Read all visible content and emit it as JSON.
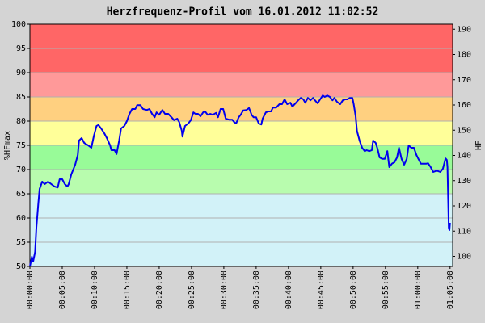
{
  "chart_data": {
    "type": "line",
    "title": "Herzfrequenz-Profil vom 16.01.2012 11:02:52",
    "y_label": "%HFmax",
    "y2_label": "HF",
    "xlim": [
      0,
      65.4
    ],
    "ylim": [
      50,
      100
    ],
    "y2lim": [
      96,
      192
    ],
    "xticks": [
      {
        "value": 0,
        "label": "00:00:00"
      },
      {
        "value": 5,
        "label": "00:05:00"
      },
      {
        "value": 10,
        "label": "00:10:00"
      },
      {
        "value": 15,
        "label": "00:15:00"
      },
      {
        "value": 20,
        "label": "00:20:00"
      },
      {
        "value": 25,
        "label": "00:25:00"
      },
      {
        "value": 30,
        "label": "00:30:00"
      },
      {
        "value": 35,
        "label": "00:35:00"
      },
      {
        "value": 40,
        "label": "00:40:00"
      },
      {
        "value": 45,
        "label": "00:45:00"
      },
      {
        "value": 50,
        "label": "00:50:00"
      },
      {
        "value": 55,
        "label": "00:55:00"
      },
      {
        "value": 60,
        "label": "01:00:00"
      },
      {
        "value": 65,
        "label": "01:05:00"
      }
    ],
    "yticks": [
      50,
      55,
      60,
      65,
      70,
      75,
      80,
      85,
      90,
      95,
      100
    ],
    "y2ticks": [
      100,
      110,
      120,
      130,
      140,
      150,
      160,
      170,
      180,
      190
    ],
    "grid": true,
    "zones": [
      {
        "from": 50,
        "to": 65,
        "color": "#d2f2f8"
      },
      {
        "from": 65,
        "to": 70,
        "color": "#b8fcae"
      },
      {
        "from": 70,
        "to": 75,
        "color": "#98fb98"
      },
      {
        "from": 75,
        "to": 80,
        "color": "#ffff99"
      },
      {
        "from": 80,
        "to": 85,
        "color": "#ffd080"
      },
      {
        "from": 85,
        "to": 90,
        "color": "#ff9999"
      },
      {
        "from": 90,
        "to": 100,
        "color": "#ff6666"
      }
    ],
    "x": [
      0.0,
      0.3,
      0.5,
      0.8,
      1.0,
      1.3,
      1.5,
      1.9,
      2.3,
      2.8,
      3.3,
      3.8,
      4.3,
      4.6,
      5.0,
      5.4,
      5.8,
      6.0,
      6.4,
      7.0,
      7.4,
      7.6,
      8.0,
      8.4,
      9.0,
      9.5,
      9.9,
      10.3,
      10.6,
      11.0,
      11.5,
      11.9,
      12.4,
      12.6,
      13.1,
      13.4,
      13.8,
      14.1,
      14.6,
      15.0,
      15.4,
      15.8,
      16.3,
      16.6,
      17.1,
      17.5,
      18.1,
      18.5,
      18.9,
      19.3,
      19.6,
      20.0,
      20.5,
      20.9,
      21.4,
      21.9,
      22.3,
      22.8,
      23.1,
      23.5,
      23.6,
      24.0,
      24.5,
      24.9,
      25.3,
      25.6,
      26.0,
      26.4,
      26.8,
      27.1,
      27.5,
      27.9,
      28.3,
      28.8,
      29.1,
      29.5,
      29.9,
      30.3,
      30.8,
      31.3,
      31.6,
      31.9,
      32.3,
      32.6,
      33.0,
      33.5,
      33.9,
      34.3,
      34.6,
      35.0,
      35.4,
      35.8,
      36.0,
      36.5,
      36.9,
      37.3,
      37.6,
      38.1,
      38.6,
      39.0,
      39.4,
      39.8,
      40.3,
      40.6,
      41.1,
      41.5,
      41.9,
      42.3,
      42.6,
      43.0,
      43.4,
      43.8,
      44.1,
      44.5,
      44.9,
      45.3,
      45.6,
      46.0,
      46.4,
      46.8,
      47.1,
      47.5,
      48.0,
      48.4,
      48.8,
      49.1,
      49.5,
      49.9,
      50.1,
      50.4,
      50.6,
      51.0,
      51.4,
      51.8,
      52.1,
      52.5,
      52.9,
      53.1,
      53.5,
      53.8,
      54.1,
      54.5,
      54.9,
      55.3,
      55.6,
      56.0,
      56.4,
      56.8,
      57.1,
      57.5,
      57.9,
      58.3,
      58.6,
      59.0,
      59.4,
      59.8,
      60.1,
      60.5,
      60.9,
      61.3,
      61.6,
      62.0,
      62.4,
      62.8,
      63.1,
      63.5,
      63.9,
      64.3,
      64.5,
      64.6,
      64.8,
      64.9,
      65.0
    ],
    "series": [
      {
        "color": "#0000ee",
        "values": [
          50,
          52,
          51,
          53,
          58,
          63,
          66,
          67.5,
          67,
          67.5,
          67,
          66.5,
          66.3,
          68,
          68,
          67,
          66.5,
          67,
          69,
          71,
          73,
          76,
          76.5,
          75.5,
          75,
          74.5,
          77,
          79,
          79.2,
          78.5,
          77.5,
          76.5,
          75,
          74,
          74,
          73.2,
          76,
          78.5,
          79,
          80,
          81.5,
          82.5,
          82.5,
          83.3,
          83.3,
          82.5,
          82.3,
          82.5,
          81.5,
          80.8,
          81.8,
          81.3,
          82.3,
          81.5,
          81.5,
          80.8,
          80.2,
          80.5,
          79.8,
          78,
          76.8,
          79,
          79.5,
          80.2,
          81.8,
          81.5,
          81.5,
          81,
          81.8,
          82,
          81.3,
          81.5,
          81.3,
          81.7,
          80.8,
          82.5,
          82.5,
          80.5,
          80.3,
          80.3,
          79.8,
          79.5,
          80.8,
          81.3,
          82.2,
          82.3,
          82.7,
          81.3,
          80.8,
          80.8,
          79.5,
          79.3,
          80.5,
          81.8,
          82,
          82,
          82.8,
          82.8,
          83.5,
          83.5,
          84.5,
          83.5,
          83.8,
          83,
          83.7,
          84.3,
          84.8,
          84.5,
          83.8,
          84.8,
          84.3,
          84.8,
          84.3,
          83.7,
          84.5,
          85.3,
          85,
          85.3,
          85,
          84.3,
          84.8,
          84,
          83.5,
          84.3,
          84.5,
          84.5,
          84.8,
          84.8,
          83.5,
          81,
          78,
          76,
          74.5,
          73.8,
          74,
          73.8,
          74,
          76,
          75.5,
          74.2,
          72.5,
          72.2,
          72.2,
          73.8,
          70.5,
          71.2,
          71.5,
          72.5,
          74.5,
          72.2,
          71,
          72.2,
          75,
          74.5,
          74.5,
          73,
          72.2,
          71.2,
          71.2,
          71.2,
          71.3,
          70.5,
          69.5,
          69.7,
          69.7,
          69.5,
          70.2,
          72.3,
          72,
          70.5,
          58,
          57.5,
          59
        ]
      }
    ]
  }
}
